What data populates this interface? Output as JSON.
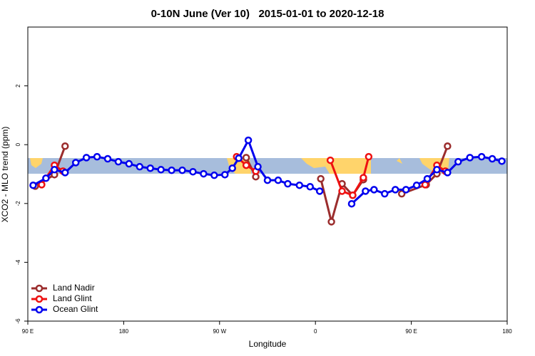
{
  "chart_data": {
    "type": "line",
    "title": "0-10N June (Ver 10)   2015-01-01 to 2020-12-18",
    "x_label": "Longitude",
    "y_label": "XCO2 - MLO trend (ppm)",
    "xlim": [
      90,
      540
    ],
    "xticks": [
      {
        "value": 90,
        "label": "90 E"
      },
      180,
      {
        "value": 270,
        "label": "90 W"
      },
      {
        "value": 360,
        "label": "0"
      },
      {
        "value": 450,
        "label": "90 E"
      },
      {
        "value": 540,
        "label": "180"
      }
    ],
    "ylim": [
      -6,
      4
    ],
    "yticks": [
      -6,
      -4,
      -2,
      0,
      2
    ],
    "legend": "bottom-left",
    "series": [
      {
        "name": "Land Nadir",
        "color": "#9b2d2d",
        "x": [
          97,
          115,
          125,
          null,
          295,
          304,
          null,
          365,
          375,
          385,
          395,
          405,
          null,
          441,
          464,
          474,
          484
        ],
        "values": [
          -1.41,
          -1.02,
          -0.05,
          null,
          -0.44,
          -1.09,
          null,
          -1.16,
          -2.62,
          -1.33,
          -1.72,
          -1.19,
          null,
          -1.67,
          -1.36,
          -0.99,
          -0.05
        ]
      },
      {
        "name": "Land Glint",
        "color": "#ee1111",
        "x": [
          103,
          115,
          123,
          null,
          286,
          295,
          304,
          null,
          374,
          385,
          395,
          405,
          410,
          null,
          463,
          474,
          482
        ],
        "values": [
          -1.36,
          -0.7,
          -0.9,
          null,
          -0.41,
          -0.7,
          -0.9,
          null,
          -0.53,
          -1.58,
          -1.72,
          -1.12,
          -0.41,
          null,
          -1.36,
          -0.7,
          -0.9
        ]
      },
      {
        "name": "Ocean Glint",
        "color": "#0000ee",
        "x": [
          95,
          107,
          115,
          125,
          135,
          145,
          155,
          165,
          175,
          185,
          195,
          205,
          215,
          225,
          235,
          245,
          255,
          265,
          275,
          282,
          288,
          297,
          306,
          315,
          325,
          334,
          345,
          355,
          364,
          null,
          394,
          407,
          415,
          425,
          435,
          445,
          455,
          465,
          474,
          484,
          494,
          505,
          516,
          526,
          535
        ],
        "values": [
          -1.38,
          -1.14,
          -0.85,
          -0.95,
          -0.61,
          -0.44,
          -0.41,
          -0.48,
          -0.58,
          -0.65,
          -0.75,
          -0.8,
          -0.85,
          -0.87,
          -0.87,
          -0.92,
          -0.99,
          -1.04,
          -1.02,
          -0.8,
          -0.46,
          0.15,
          -0.75,
          -1.21,
          -1.21,
          -1.33,
          -1.38,
          -1.43,
          -1.58,
          null,
          -2.01,
          -1.58,
          -1.53,
          -1.67,
          -1.53,
          -1.53,
          -1.38,
          -1.16,
          -0.85,
          -0.95,
          -0.58,
          -0.44,
          -0.41,
          -0.48,
          -0.56
        ]
      }
    ]
  }
}
